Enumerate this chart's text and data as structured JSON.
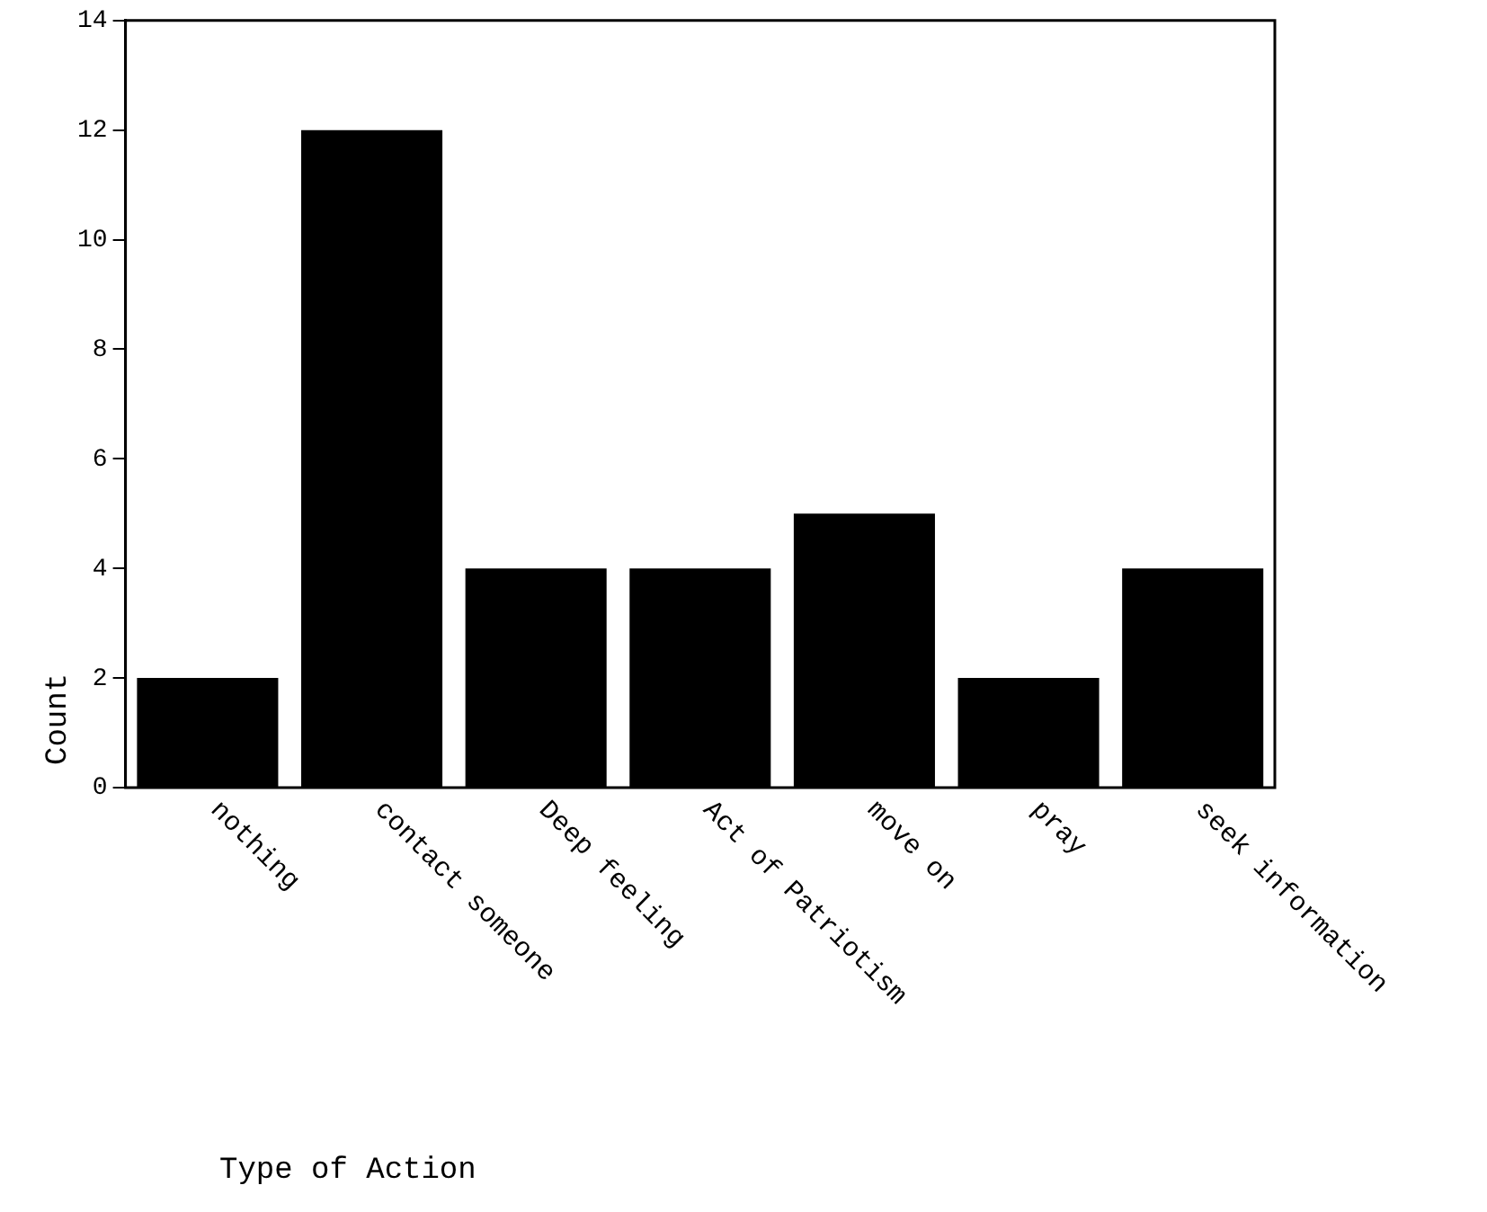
{
  "chart_data": {
    "type": "bar",
    "xlabel": "Type of Action",
    "ylabel": "Count",
    "categories": [
      "nothing",
      "contact someone",
      "Deep feeling",
      "Act of Patriotism",
      "move on",
      "pray",
      "seek information"
    ],
    "values": [
      2,
      12,
      4,
      4,
      5,
      2,
      4
    ],
    "color": "#000000",
    "ylim": [
      0,
      14
    ],
    "yticks": [
      0,
      2,
      4,
      6,
      8,
      10,
      12,
      14
    ],
    "grid": false,
    "legend": false
  }
}
